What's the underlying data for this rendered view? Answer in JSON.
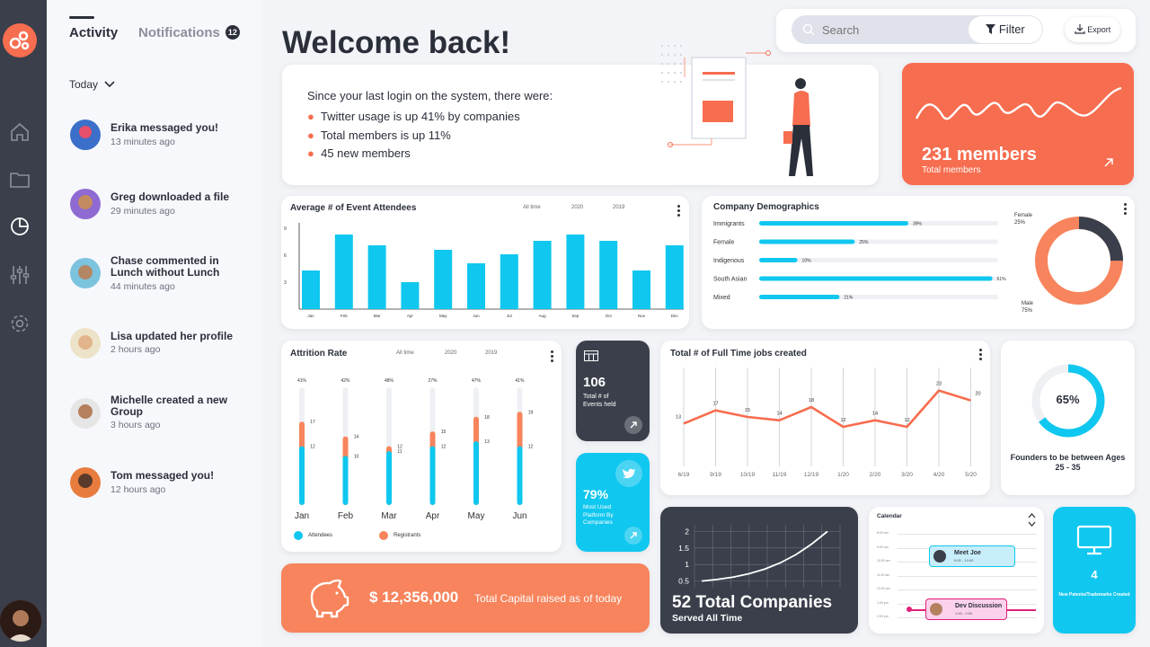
{
  "activity_panel": {
    "tab_activity": "Activity",
    "tab_notifications": "Notifications",
    "notifications_count": "12",
    "filter_label": "Today",
    "items": [
      {
        "title": "Erika messaged you!",
        "time": "13 minutes ago"
      },
      {
        "title": "Greg downloaded a file",
        "time": "29 minutes ago"
      },
      {
        "title": "Chase commented in Lunch without Lunch",
        "time": "44 minutes ago"
      },
      {
        "title": "Lisa updated her profile",
        "time": "2 hours ago"
      },
      {
        "title": "Michelle created a new Group",
        "time": "3 hours ago"
      },
      {
        "title": "Tom messaged you!",
        "time": "12 hours ago"
      }
    ]
  },
  "header": {
    "title": "Welcome back!",
    "search_placeholder": "Search",
    "filter_label": "Filter",
    "export_label": "Export"
  },
  "summary": {
    "intro": "Since your last login on the system, there were:",
    "bullets": [
      "Twitter usage is up 41% by companies",
      "Total members is up 11%",
      "45 new members"
    ]
  },
  "members_card": {
    "value": "231 members",
    "label": "Total members"
  },
  "attendees_chart": {
    "title": "Average # of Event Attendees",
    "filters": [
      "All time",
      "2020",
      "2019"
    ],
    "yticks": [
      "9",
      "6",
      "3"
    ],
    "months": [
      "Jan",
      "Feb",
      "Mar",
      "Apr",
      "May",
      "Jun",
      "Jul",
      "Aug",
      "Sep",
      "Oct",
      "Nov",
      "Dec"
    ]
  },
  "demographics": {
    "title": "Company Demographics",
    "rows": [
      {
        "label": "Immigrants",
        "pct": "39%"
      },
      {
        "label": "Female",
        "pct": "25%"
      },
      {
        "label": "Indigenous",
        "pct": "10%"
      },
      {
        "label": "South Asian",
        "pct": "61%"
      },
      {
        "label": "Mixed",
        "pct": "21%"
      }
    ],
    "donut_female": "Female",
    "donut_female_pct": "25%",
    "donut_male": "Male",
    "donut_male_pct": "75%"
  },
  "attrition": {
    "title": "Attrition Rate",
    "filters": [
      "All time",
      "2020",
      "2019"
    ],
    "months": [
      "Jan",
      "Feb",
      "Mar",
      "Apr",
      "May",
      "Jun"
    ],
    "top_pct": [
      "41%",
      "42%",
      "48%",
      "27%",
      "47%",
      "41%"
    ],
    "legend_attendees": "Attendees",
    "legend_registrants": "Registrants"
  },
  "events_card": {
    "value": "106",
    "label": "Total # of Events held"
  },
  "twitter_card": {
    "value": "79%",
    "label": "Most Used Platform By Companies"
  },
  "jobs_chart": {
    "title": "Total # of Full Time jobs created",
    "x": [
      "6/19",
      "9/19",
      "10/19",
      "11/19",
      "12/19",
      "1/20",
      "2/20",
      "3/20",
      "4/20",
      "5/20"
    ]
  },
  "founders_card": {
    "value": "65%",
    "label": "Founders to be between Ages 25 - 35",
    "fraction": 0.65
  },
  "companies_card": {
    "value": "52 Total Companies",
    "label": "Served All Time",
    "yticks": [
      "2",
      "1.5",
      "1",
      "0.5"
    ]
  },
  "calendar": {
    "title": "Calendar",
    "time_labels": [
      "8:00 am",
      "9:00 am",
      "10:00 am",
      "11:00 am",
      "12:00 pm",
      "1:00 pm",
      "2:00 pm"
    ],
    "event1_title": "Meet Joe",
    "event1_time": "9:00 - 10:00",
    "event2_title": "Dev Discussion",
    "event2_time": "1:00 - 2:00"
  },
  "patents_card": {
    "value": "4",
    "label": "New Patents/Trademarks Created"
  },
  "capital_card": {
    "value": "$ 12,356,000",
    "label": "Total Capital raised as of today"
  },
  "colors": {
    "orange": "#f76d4f",
    "cyan": "#10c7ef",
    "dark": "#3a3f4b",
    "peach": "#f7845c"
  },
  "chart_data": [
    {
      "type": "bar",
      "title": "Average # of Event Attendees",
      "categories": [
        "Jan",
        "Feb",
        "Mar",
        "Apr",
        "May",
        "Jun",
        "Jul",
        "Aug",
        "Sep",
        "Oct",
        "Nov",
        "Dec"
      ],
      "values": [
        4.3,
        8.3,
        7.1,
        3.0,
        6.6,
        5.1,
        6.1,
        7.6,
        8.3,
        7.6,
        4.3,
        7.1
      ],
      "ylim": [
        0,
        10
      ]
    },
    {
      "type": "bar",
      "title": "Company Demographics",
      "categories": [
        "Immigrants",
        "Female",
        "Indigenous",
        "South Asian",
        "Mixed"
      ],
      "values": [
        39,
        25,
        10,
        61,
        21
      ],
      "ylim": [
        0,
        100
      ]
    },
    {
      "type": "pie",
      "categories": [
        "Female",
        "Male"
      ],
      "values": [
        25,
        75
      ]
    },
    {
      "type": "bar",
      "title": "Attrition Rate",
      "categories": [
        "Jan",
        "Feb",
        "Mar",
        "Apr",
        "May",
        "Jun"
      ],
      "series": [
        {
          "name": "Attendees",
          "values": [
            12,
            10,
            11,
            12,
            13,
            12
          ]
        },
        {
          "name": "Registrants",
          "values": [
            17,
            14,
            12,
            15,
            18,
            19
          ]
        }
      ],
      "ylim": [
        0,
        24
      ],
      "legend": "bottom-left"
    },
    {
      "type": "line",
      "title": "Total # of Full Time jobs created",
      "x": [
        "6/19",
        "9/19",
        "10/19",
        "11/19",
        "12/19",
        "1/20",
        "2/20",
        "3/20",
        "4/20",
        "5/20"
      ],
      "values": [
        13,
        17,
        15,
        14,
        18,
        12,
        14,
        12,
        23,
        20
      ],
      "ylim": [
        0,
        30
      ],
      "grid": true
    },
    {
      "type": "line",
      "title": "52 Total Companies",
      "yticks": [
        0.5,
        1,
        1.5,
        2
      ],
      "values": [
        0.5,
        0.55,
        0.62,
        0.72,
        0.86,
        1.05,
        1.3,
        1.62,
        2.0
      ],
      "ylim": [
        0.3,
        2.2
      ],
      "grid": true
    }
  ]
}
